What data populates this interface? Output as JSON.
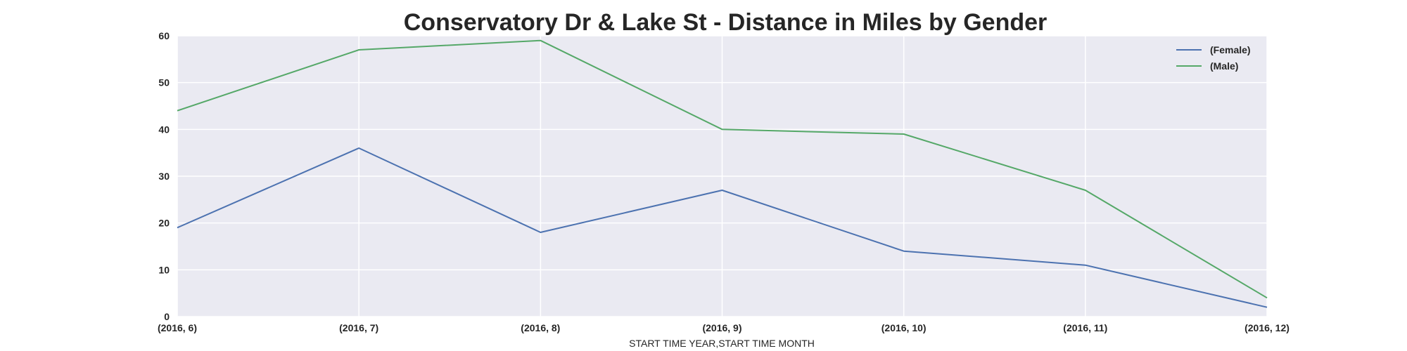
{
  "chart_data": {
    "type": "line",
    "title": "Conservatory Dr & Lake St - Distance in Miles by Gender",
    "xlabel": "START TIME YEAR,START TIME MONTH",
    "ylabel": "",
    "categories": [
      "(2016, 6)",
      "(2016, 7)",
      "(2016, 8)",
      "(2016, 9)",
      "(2016, 10)",
      "(2016, 11)",
      "(2016, 12)"
    ],
    "ylim": [
      0,
      60
    ],
    "yticks": [
      0,
      10,
      20,
      30,
      40,
      50,
      60
    ],
    "grid": true,
    "legend_position": "top-right",
    "series": [
      {
        "name": "(Female)",
        "color": "#4c72b0",
        "values": [
          19,
          36,
          18,
          27,
          14,
          11,
          2
        ]
      },
      {
        "name": "(Male)",
        "color": "#55a868",
        "values": [
          44,
          57,
          59,
          40,
          39,
          27,
          4
        ]
      }
    ]
  },
  "colors": {
    "plot_background": "#eaeaf2",
    "grid": "#ffffff"
  }
}
